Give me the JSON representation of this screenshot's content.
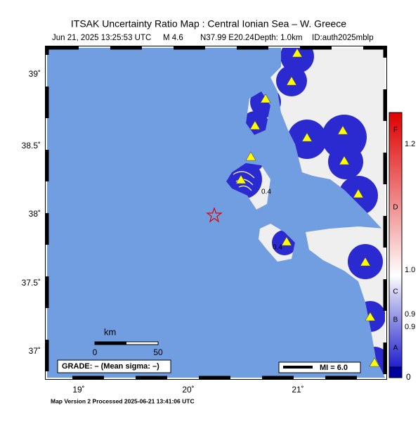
{
  "title": "ITSAK Uncertainty Ratio Map : Central Ionian Sea – W. Greece",
  "subtitle": {
    "date": "Jun 21, 2025 13:25:53 UTC",
    "magnitude": "M 4.6",
    "location": "N37.99 E20.24",
    "depth": "Depth: 1.0km",
    "id": "ID:auth2025mblp"
  },
  "map": {
    "lat_labels": [
      "39˚",
      "38.5˚",
      "38˚",
      "37.5˚",
      "37˚"
    ],
    "lon_labels": [
      "19˚",
      "20˚",
      "21˚"
    ],
    "contour_labels": [
      "0.4",
      "0.4"
    ]
  },
  "scale_bar": {
    "unit": "km",
    "ticks": [
      "0",
      "50"
    ]
  },
  "grade": "GRADE: – (Mean sigma: –)",
  "mi_legend": "MI = 6.0",
  "colorbar": {
    "grades": [
      "F",
      "D",
      "C",
      "B",
      "A"
    ],
    "labels": [
      "1.2",
      "1.0",
      "0.9",
      "0.9",
      "0"
    ]
  },
  "footer": "Map Version 2 Processed 2025-06-21 13:41:06 UTC"
}
